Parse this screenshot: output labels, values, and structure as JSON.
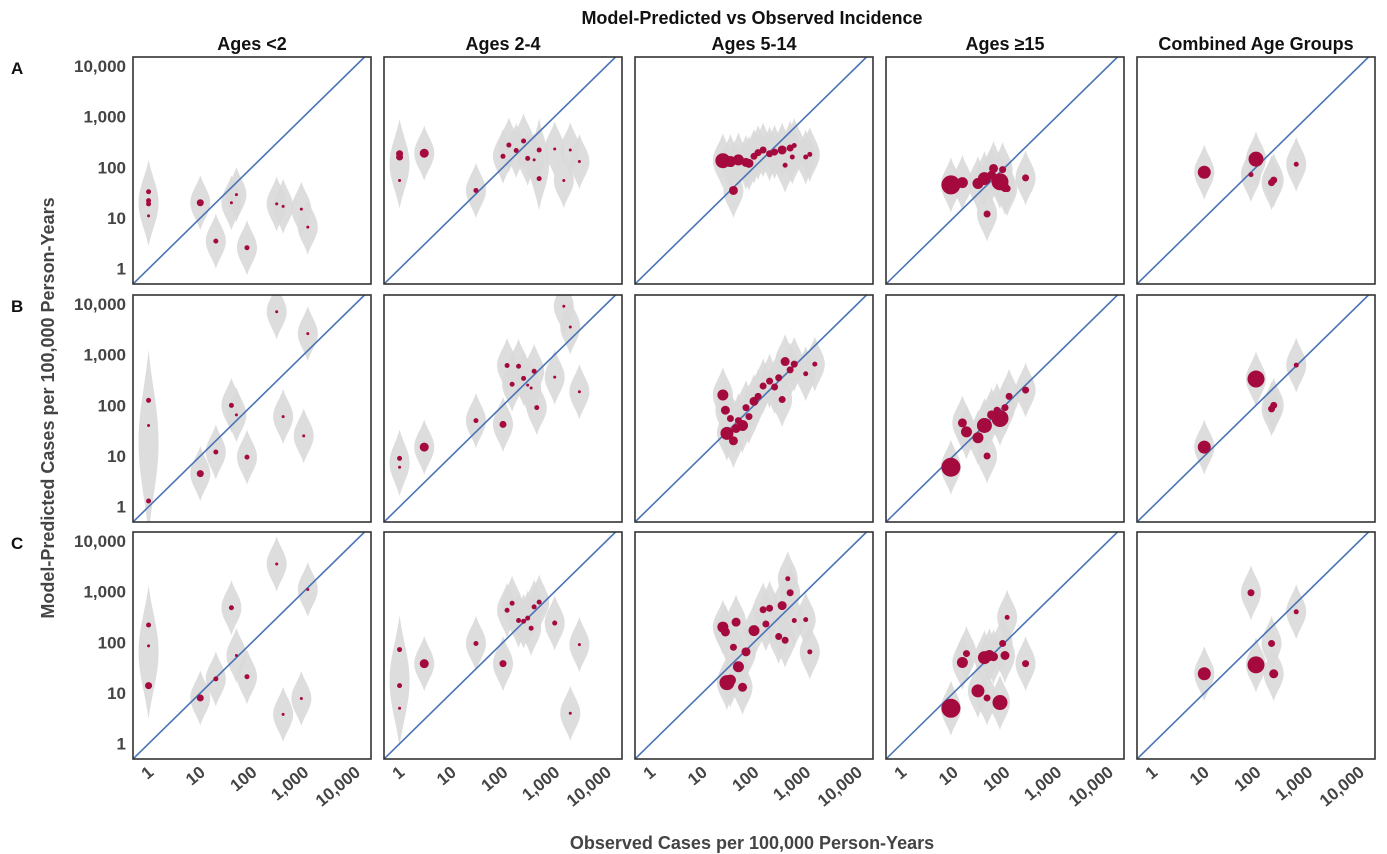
{
  "chart_data": {
    "type": "scatter",
    "title": "Model-Predicted vs Observed Incidence",
    "xlabel": "Observed Cases per 100,000 Person-Years",
    "ylabel": "Model-Predicted Cases per 100,000 Person-Years",
    "scale": "log",
    "xlim": [
      0.5,
      20000
    ],
    "ylim": [
      0.5,
      15000
    ],
    "x_ticks": [
      "1",
      "10",
      "100",
      "1,000",
      "10,000"
    ],
    "y_ticks": [
      "1",
      "10",
      "100",
      "1,000",
      "10,000"
    ],
    "columns": [
      "Ages <2",
      "Ages 2-4",
      "Ages 5-14",
      "Ages ≥15",
      "Combined Age Groups"
    ],
    "rows": [
      "A",
      "B",
      "C"
    ],
    "reference_line": "y = x",
    "colors": {
      "point": "#a50a3e",
      "violin": "#d9d9d9",
      "line": "#4a74b4",
      "frame": "#333333"
    },
    "panels": [
      {
        "row": "A",
        "column": "Ages <2",
        "points": [
          [
            1,
            33,
            2
          ],
          [
            1,
            22,
            2
          ],
          [
            1,
            19,
            2
          ],
          [
            1,
            11,
            1
          ],
          [
            10,
            20,
            3
          ],
          [
            20,
            3.5,
            2
          ],
          [
            40,
            20,
            1
          ],
          [
            50,
            29,
            1
          ],
          [
            80,
            2.6,
            2
          ],
          [
            300,
            19,
            1
          ],
          [
            400,
            17,
            1
          ],
          [
            900,
            15,
            1
          ],
          [
            1200,
            6.6,
            1
          ]
        ]
      },
      {
        "row": "A",
        "column": "Ages 2-4",
        "points": [
          [
            1,
            185,
            3
          ],
          [
            1,
            160,
            3
          ],
          [
            1,
            55,
            1
          ],
          [
            3,
            190,
            4
          ],
          [
            30,
            35,
            2
          ],
          [
            100,
            165,
            2
          ],
          [
            130,
            275,
            2
          ],
          [
            180,
            215,
            2
          ],
          [
            250,
            330,
            2
          ],
          [
            300,
            150,
            2
          ],
          [
            400,
            140,
            1
          ],
          [
            500,
            220,
            2
          ],
          [
            500,
            60,
            2
          ],
          [
            1000,
            230,
            1
          ],
          [
            1500,
            55,
            1
          ],
          [
            2000,
            220,
            1
          ],
          [
            3000,
            130,
            1
          ]
        ]
      },
      {
        "row": "A",
        "column": "Ages 5-14",
        "points": [
          [
            25,
            135,
            7
          ],
          [
            35,
            130,
            5
          ],
          [
            40,
            35,
            4
          ],
          [
            50,
            140,
            5
          ],
          [
            70,
            125,
            4
          ],
          [
            80,
            120,
            4
          ],
          [
            100,
            165,
            3
          ],
          [
            120,
            195,
            3
          ],
          [
            150,
            220,
            3
          ],
          [
            200,
            185,
            3
          ],
          [
            250,
            200,
            3
          ],
          [
            350,
            220,
            4
          ],
          [
            400,
            110,
            2
          ],
          [
            500,
            240,
            3
          ],
          [
            550,
            160,
            2
          ],
          [
            600,
            270,
            2
          ],
          [
            1000,
            160,
            2
          ],
          [
            1200,
            180,
            2
          ]
        ]
      },
      {
        "row": "A",
        "column": "Ages ≥15",
        "points": [
          [
            9,
            45,
            9
          ],
          [
            15,
            50,
            5
          ],
          [
            30,
            48,
            5
          ],
          [
            40,
            60,
            6
          ],
          [
            45,
            12,
            3
          ],
          [
            55,
            70,
            4
          ],
          [
            60,
            95,
            4
          ],
          [
            80,
            52,
            8
          ],
          [
            90,
            90,
            3
          ],
          [
            100,
            40,
            4
          ],
          [
            110,
            38,
            3
          ],
          [
            250,
            62,
            3
          ]
        ]
      },
      {
        "row": "A",
        "column": "Combined Age Groups",
        "points": [
          [
            10,
            80,
            6
          ],
          [
            80,
            72,
            2
          ],
          [
            100,
            145,
            7
          ],
          [
            200,
            50,
            3
          ],
          [
            220,
            56,
            3
          ],
          [
            600,
            115,
            2
          ]
        ]
      },
      {
        "row": "B",
        "column": "Ages <2",
        "points": [
          [
            1,
            125,
            2
          ],
          [
            1,
            40,
            1
          ],
          [
            1,
            1.3,
            2
          ],
          [
            10,
            4.5,
            3
          ],
          [
            20,
            12,
            2
          ],
          [
            40,
            100,
            2
          ],
          [
            50,
            65,
            1
          ],
          [
            80,
            9.5,
            2
          ],
          [
            300,
            7000,
            1
          ],
          [
            400,
            60,
            1
          ],
          [
            1000,
            25,
            1
          ],
          [
            1200,
            2600,
            1
          ]
        ]
      },
      {
        "row": "B",
        "column": "Ages 2-4",
        "points": [
          [
            1,
            9,
            2
          ],
          [
            1,
            6,
            1
          ],
          [
            3,
            15,
            4
          ],
          [
            30,
            50,
            2
          ],
          [
            100,
            42,
            3
          ],
          [
            120,
            610,
            2
          ],
          [
            150,
            260,
            2
          ],
          [
            200,
            590,
            2
          ],
          [
            250,
            340,
            2
          ],
          [
            300,
            250,
            1
          ],
          [
            350,
            220,
            1
          ],
          [
            400,
            470,
            2
          ],
          [
            450,
            90,
            2
          ],
          [
            1000,
            360,
            1
          ],
          [
            1500,
            9000,
            1
          ],
          [
            2000,
            3500,
            1
          ],
          [
            3000,
            185,
            1
          ]
        ]
      },
      {
        "row": "B",
        "column": "Ages 5-14",
        "points": [
          [
            25,
            160,
            5
          ],
          [
            28,
            80,
            4
          ],
          [
            30,
            28,
            6
          ],
          [
            35,
            55,
            3
          ],
          [
            40,
            20,
            4
          ],
          [
            45,
            35,
            4
          ],
          [
            50,
            50,
            3
          ],
          [
            60,
            40,
            5
          ],
          [
            70,
            90,
            3
          ],
          [
            80,
            60,
            3
          ],
          [
            100,
            120,
            4
          ],
          [
            120,
            150,
            3
          ],
          [
            150,
            240,
            3
          ],
          [
            200,
            300,
            3
          ],
          [
            250,
            230,
            3
          ],
          [
            300,
            350,
            3
          ],
          [
            350,
            130,
            3
          ],
          [
            400,
            730,
            4
          ],
          [
            500,
            500,
            3
          ],
          [
            600,
            650,
            3
          ],
          [
            1000,
            420,
            2
          ],
          [
            1500,
            650,
            2
          ]
        ]
      },
      {
        "row": "B",
        "column": "Ages ≥15",
        "points": [
          [
            9,
            6,
            9
          ],
          [
            15,
            45,
            4
          ],
          [
            18,
            30,
            5
          ],
          [
            30,
            23,
            5
          ],
          [
            40,
            40,
            7
          ],
          [
            45,
            10,
            3
          ],
          [
            55,
            65,
            4
          ],
          [
            70,
            80,
            3
          ],
          [
            80,
            55,
            8
          ],
          [
            100,
            90,
            3
          ],
          [
            120,
            150,
            3
          ],
          [
            250,
            200,
            3
          ]
        ]
      },
      {
        "row": "B",
        "column": "Combined Age Groups",
        "points": [
          [
            10,
            15,
            6
          ],
          [
            100,
            330,
            8
          ],
          [
            200,
            85,
            3
          ],
          [
            220,
            100,
            3
          ],
          [
            600,
            620,
            2
          ]
        ]
      },
      {
        "row": "C",
        "column": "Ages <2",
        "points": [
          [
            1,
            220,
            2
          ],
          [
            1,
            85,
            1
          ],
          [
            1,
            14,
            3
          ],
          [
            10,
            8,
            3
          ],
          [
            20,
            19,
            2
          ],
          [
            40,
            480,
            2
          ],
          [
            50,
            55,
            1
          ],
          [
            80,
            21,
            2
          ],
          [
            300,
            3500,
            1
          ],
          [
            400,
            3.8,
            1
          ],
          [
            900,
            7.8,
            1
          ],
          [
            1200,
            1100,
            1
          ]
        ]
      },
      {
        "row": "C",
        "column": "Ages 2-4",
        "points": [
          [
            1,
            72,
            2
          ],
          [
            1,
            14,
            2
          ],
          [
            1,
            5,
            1
          ],
          [
            3,
            38,
            4
          ],
          [
            30,
            95,
            2
          ],
          [
            100,
            38,
            3
          ],
          [
            120,
            430,
            2
          ],
          [
            150,
            590,
            2
          ],
          [
            200,
            270,
            2
          ],
          [
            250,
            260,
            2
          ],
          [
            300,
            300,
            2
          ],
          [
            350,
            190,
            2
          ],
          [
            400,
            500,
            2
          ],
          [
            500,
            620,
            2
          ],
          [
            1000,
            240,
            2
          ],
          [
            2000,
            4,
            1
          ],
          [
            3000,
            90,
            1
          ]
        ]
      },
      {
        "row": "C",
        "column": "Ages 5-14",
        "points": [
          [
            25,
            200,
            5
          ],
          [
            28,
            160,
            4
          ],
          [
            30,
            16,
            7
          ],
          [
            35,
            18,
            5
          ],
          [
            40,
            80,
            3
          ],
          [
            45,
            250,
            4
          ],
          [
            50,
            33,
            5
          ],
          [
            60,
            13,
            4
          ],
          [
            70,
            65,
            4
          ],
          [
            100,
            170,
            5
          ],
          [
            150,
            440,
            3
          ],
          [
            170,
            230,
            3
          ],
          [
            200,
            470,
            3
          ],
          [
            300,
            130,
            3
          ],
          [
            350,
            530,
            4
          ],
          [
            400,
            110,
            3
          ],
          [
            450,
            1800,
            2
          ],
          [
            500,
            950,
            3
          ],
          [
            600,
            270,
            2
          ],
          [
            1000,
            280,
            2
          ],
          [
            1200,
            65,
            2
          ]
        ]
      },
      {
        "row": "C",
        "column": "Ages ≥15",
        "points": [
          [
            9,
            5,
            9
          ],
          [
            15,
            40,
            5
          ],
          [
            18,
            60,
            3
          ],
          [
            30,
            11,
            6
          ],
          [
            40,
            50,
            6
          ],
          [
            45,
            8,
            3
          ],
          [
            50,
            55,
            5
          ],
          [
            60,
            52,
            4
          ],
          [
            80,
            6.5,
            7
          ],
          [
            90,
            95,
            3
          ],
          [
            100,
            55,
            4
          ],
          [
            110,
            310,
            2
          ],
          [
            250,
            38,
            3
          ]
        ]
      },
      {
        "row": "C",
        "column": "Combined Age Groups",
        "points": [
          [
            10,
            24,
            6
          ],
          [
            80,
            950,
            3
          ],
          [
            100,
            36,
            8
          ],
          [
            200,
            95,
            3
          ],
          [
            220,
            24,
            4
          ],
          [
            600,
            400,
            2
          ]
        ]
      }
    ]
  }
}
